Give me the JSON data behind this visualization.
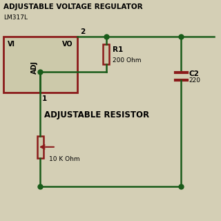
{
  "title": "ADJUSTABLE VOLTAGE REGULATOR",
  "subtitle": "LM317L",
  "bg_color": "#d4cfb5",
  "wire_color": "#1a5c1a",
  "component_color": "#8b1a1a",
  "component_fill": "#ccc9aa",
  "text_color": "#000000",
  "label_r1": "R1",
  "label_r1_val": "200 Ohm",
  "label_c": "C2",
  "label_c_val": "220",
  "label_adj_res": "ADJUSTABLE RESISTOR",
  "label_pot_val": "10 K Ohm",
  "label_vi": "VI",
  "label_vo": "VO",
  "label_adj": "ADJ",
  "label_pin1": "1",
  "label_pin2": "2"
}
